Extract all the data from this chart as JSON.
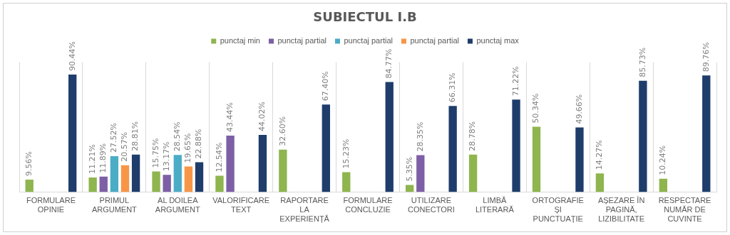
{
  "chart_data": {
    "type": "bar",
    "title": "SUBIECTUL I.B",
    "categories": [
      "FORMULARE OPINIE",
      "PRIMUL ARGUMENT",
      "AL DOILEA ARGUMENT",
      "VALORIFICARE TEXT",
      "RAPORTARE LA EXPERIENȚĂ",
      "FORMULARE CONCLUZIE",
      "UTILIZARE CONECTORI",
      "LIMBĂ LITERARĂ",
      "ORTOGRAFIE ȘI PUNCTUAȚIE",
      "AȘEZARE ÎN PAGINĂ, LIZIBILITATE",
      "RESPECTARE NUMĂR DE CUVINTE"
    ],
    "series": [
      {
        "name": "punctaj min",
        "color": "#8fb54f",
        "values": [
          9.56,
          11.21,
          15.75,
          12.54,
          32.6,
          15.23,
          5.35,
          28.78,
          50.34,
          14.27,
          10.24
        ],
        "value_labels": [
          "9.56%",
          "11.21%",
          "15.75%",
          "12.54%",
          "32.60%",
          "15.23%",
          "5.35%",
          "28.78%",
          "50.34%",
          "14.27%",
          "10.24%"
        ]
      },
      {
        "name": "punctaj partial",
        "color": "#7d5fa6",
        "values": [
          null,
          11.89,
          13.17,
          43.44,
          null,
          null,
          28.35,
          null,
          null,
          null,
          null
        ],
        "value_labels": [
          null,
          "11.89%",
          "13.17%",
          "43.44%",
          null,
          null,
          "28.35%",
          null,
          null,
          null,
          null
        ]
      },
      {
        "name": "punctaj partial",
        "color": "#4bacc6",
        "values": [
          null,
          27.52,
          28.54,
          null,
          null,
          null,
          null,
          null,
          null,
          null,
          null
        ],
        "value_labels": [
          null,
          "27.52%",
          "28.54%",
          null,
          null,
          null,
          null,
          null,
          null,
          null,
          null
        ]
      },
      {
        "name": "punctaj partial",
        "color": "#f79646",
        "values": [
          null,
          20.57,
          19.65,
          null,
          null,
          null,
          null,
          null,
          null,
          null,
          null
        ],
        "value_labels": [
          null,
          "20.57%",
          "19.65%",
          null,
          null,
          null,
          null,
          null,
          null,
          null,
          null
        ]
      },
      {
        "name": "punctaj max",
        "color": "#1f3d6b",
        "values": [
          90.44,
          28.81,
          22.88,
          44.02,
          67.4,
          84.77,
          66.31,
          71.22,
          49.66,
          85.73,
          89.76
        ],
        "value_labels": [
          "90.44%",
          "28.81%",
          "22.88%",
          "44.02%",
          "67.40%",
          "84.77%",
          "66.31%",
          "71.22%",
          "49.66%",
          "85.73%",
          "89.76%"
        ]
      }
    ],
    "ylim": [
      0,
      100
    ],
    "grid": "x",
    "legend": "top",
    "tick_labels": "x"
  }
}
